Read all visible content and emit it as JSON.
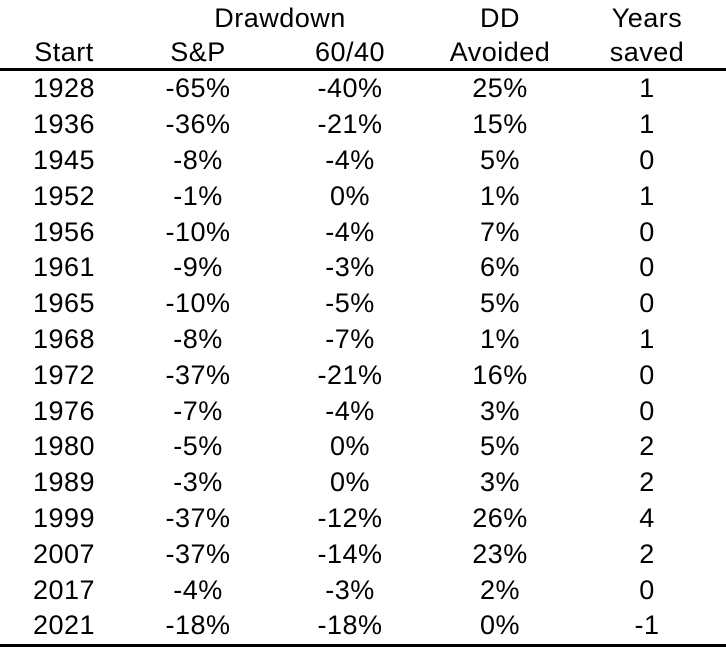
{
  "colors": {
    "background": "#ffffff",
    "text": "#000000",
    "rule": "#000000"
  },
  "table": {
    "group_headers": [
      {
        "label": "",
        "span": 1
      },
      {
        "label": "Drawdown",
        "span": 2
      },
      {
        "label": "DD",
        "span": 1
      },
      {
        "label": "Years",
        "span": 1
      }
    ],
    "column_headers": [
      "Start",
      "S&P",
      "60/40",
      "Avoided",
      "saved"
    ],
    "rows": [
      [
        "1928",
        "-65%",
        "-40%",
        "25%",
        "1"
      ],
      [
        "1936",
        "-36%",
        "-21%",
        "15%",
        "1"
      ],
      [
        "1945",
        "-8%",
        "-4%",
        "5%",
        "0"
      ],
      [
        "1952",
        "-1%",
        "0%",
        "1%",
        "1"
      ],
      [
        "1956",
        "-10%",
        "-4%",
        "7%",
        "0"
      ],
      [
        "1961",
        "-9%",
        "-3%",
        "6%",
        "0"
      ],
      [
        "1965",
        "-10%",
        "-5%",
        "5%",
        "0"
      ],
      [
        "1968",
        "-8%",
        "-7%",
        "1%",
        "1"
      ],
      [
        "1972",
        "-37%",
        "-21%",
        "16%",
        "0"
      ],
      [
        "1976",
        "-7%",
        "-4%",
        "3%",
        "0"
      ],
      [
        "1980",
        "-5%",
        "0%",
        "5%",
        "2"
      ],
      [
        "1989",
        "-3%",
        "0%",
        "3%",
        "2"
      ],
      [
        "1999",
        "-37%",
        "-12%",
        "26%",
        "4"
      ],
      [
        "2007",
        "-37%",
        "-14%",
        "23%",
        "2"
      ],
      [
        "2017",
        "-4%",
        "-3%",
        "2%",
        "0"
      ],
      [
        "2021",
        "-18%",
        "-18%",
        "0%",
        "-1"
      ]
    ]
  },
  "chart_data": {
    "type": "table",
    "title": "",
    "columns": [
      "Start",
      "Drawdown S&P (%)",
      "Drawdown 60/40 (%)",
      "DD Avoided (%)",
      "Years saved"
    ],
    "rows": [
      [
        1928,
        -65,
        -40,
        25,
        1
      ],
      [
        1936,
        -36,
        -21,
        15,
        1
      ],
      [
        1945,
        -8,
        -4,
        5,
        0
      ],
      [
        1952,
        -1,
        0,
        1,
        1
      ],
      [
        1956,
        -10,
        -4,
        7,
        0
      ],
      [
        1961,
        -9,
        -3,
        6,
        0
      ],
      [
        1965,
        -10,
        -5,
        5,
        0
      ],
      [
        1968,
        -8,
        -7,
        1,
        1
      ],
      [
        1972,
        -37,
        -21,
        16,
        0
      ],
      [
        1976,
        -7,
        -4,
        3,
        0
      ],
      [
        1980,
        -5,
        0,
        5,
        2
      ],
      [
        1989,
        -3,
        0,
        3,
        2
      ],
      [
        1999,
        -37,
        -12,
        26,
        4
      ],
      [
        2007,
        -37,
        -14,
        23,
        2
      ],
      [
        2017,
        -4,
        -3,
        2,
        0
      ],
      [
        2021,
        -18,
        -18,
        0,
        -1
      ]
    ],
    "layout": {
      "header_rule": true,
      "bottom_rule": true,
      "alignment": "center"
    }
  }
}
